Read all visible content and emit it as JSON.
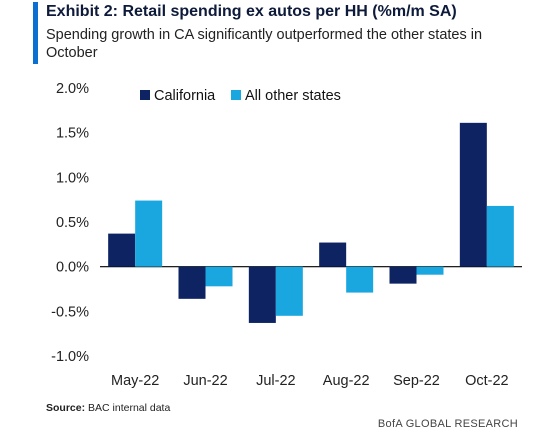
{
  "header": {
    "title": "Exhibit 2: Retail spending ex autos per HH (%m/m SA)",
    "subtitle": "Spending growth in CA significantly outperformed the other states in October"
  },
  "footer": {
    "source_label": "Source:",
    "source_text": "BAC internal data",
    "brand": "BofA GLOBAL RESEARCH"
  },
  "colors": {
    "california": "#0d2362",
    "others": "#1aa7e0",
    "accent": "#0a6fd1"
  },
  "chart_data": {
    "type": "bar",
    "title": "Exhibit 2: Retail spending ex autos per HH (%m/m SA)",
    "xlabel": "",
    "ylabel": "",
    "categories": [
      "May-22",
      "Jun-22",
      "Jul-22",
      "Aug-22",
      "Sep-22",
      "Oct-22"
    ],
    "series": [
      {
        "name": "California",
        "values": [
          0.37,
          -0.36,
          -0.63,
          0.27,
          -0.19,
          1.61
        ]
      },
      {
        "name": "All other states",
        "values": [
          0.74,
          -0.22,
          -0.55,
          -0.29,
          -0.09,
          0.68
        ]
      }
    ],
    "ylim": [
      -1.0,
      2.0
    ],
    "yticks": [
      -1.0,
      -0.5,
      0.0,
      0.5,
      1.0,
      1.5,
      2.0
    ],
    "ytick_labels": [
      "-1.0%",
      "-0.5%",
      "0.0%",
      "0.5%",
      "1.0%",
      "1.5%",
      "2.0%"
    ],
    "grid": false,
    "legend_position": "top-left"
  }
}
